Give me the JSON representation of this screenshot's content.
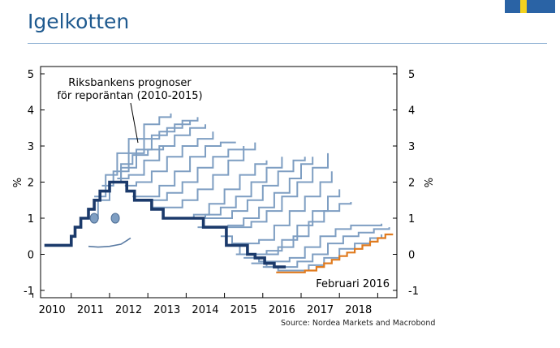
{
  "slide": {
    "title": "Igelkotten",
    "source": "Source: Nordea Markets and Macrobond"
  },
  "colors": {
    "title": "#1f5a8f",
    "forecast_line": "#7e9ec2",
    "actual_line": "#1b3a6b",
    "recent_line": "#e07b1f",
    "flag_blue": "#2a63a5",
    "flag_yellow": "#f3d21f"
  },
  "chart_data": {
    "type": "line",
    "step": true,
    "title": "",
    "xlabel": "",
    "ylabel_left": "%",
    "ylabel_right": "%",
    "xlim": [
      2009.7,
      2019.0
    ],
    "ylim": [
      -1,
      5
    ],
    "yticks": [
      "-1",
      "0",
      "1",
      "2",
      "3",
      "4",
      "5"
    ],
    "xticks": [
      "2010",
      "2011",
      "2012",
      "2013",
      "2014",
      "2015",
      "2016",
      "2017",
      "2018"
    ],
    "annotations": {
      "forecasts_label_line1": "Riksbankens prognoser",
      "forecasts_label_line2": "för reporäntan (2010-2015)",
      "latest_label": "Februari 2016"
    },
    "series": [
      {
        "role": "actual",
        "points": [
          [
            2009.8,
            0.25
          ],
          [
            2010.4,
            0.25
          ],
          [
            2010.5,
            0.5
          ],
          [
            2010.6,
            0.75
          ],
          [
            2010.75,
            1.0
          ],
          [
            2010.95,
            1.25
          ],
          [
            2011.1,
            1.5
          ],
          [
            2011.25,
            1.75
          ],
          [
            2011.5,
            2.0
          ],
          [
            2011.75,
            2.0
          ],
          [
            2011.95,
            1.75
          ],
          [
            2012.15,
            1.5
          ],
          [
            2012.6,
            1.25
          ],
          [
            2012.9,
            1.0
          ],
          [
            2013.5,
            1.0
          ],
          [
            2013.95,
            0.75
          ],
          [
            2014.5,
            0.75
          ],
          [
            2014.55,
            0.25
          ],
          [
            2014.85,
            0.25
          ],
          [
            2015.1,
            0.0
          ],
          [
            2015.3,
            -0.1
          ],
          [
            2015.55,
            -0.25
          ],
          [
            2015.8,
            -0.35
          ],
          [
            2016.1,
            -0.35
          ]
        ]
      },
      {
        "role": "recent",
        "points": [
          [
            2015.85,
            -0.5
          ],
          [
            2016.55,
            -0.5
          ],
          [
            2016.6,
            -0.45
          ],
          [
            2016.9,
            -0.35
          ],
          [
            2017.1,
            -0.25
          ],
          [
            2017.3,
            -0.15
          ],
          [
            2017.5,
            -0.05
          ],
          [
            2017.7,
            0.05
          ],
          [
            2017.9,
            0.15
          ],
          [
            2018.1,
            0.25
          ],
          [
            2018.3,
            0.35
          ],
          [
            2018.5,
            0.45
          ],
          [
            2018.7,
            0.55
          ],
          [
            2018.9,
            0.55
          ]
        ]
      },
      {
        "role": "forecast",
        "points": [
          [
            2010.9,
            1.0
          ],
          [
            2011.2,
            1.5
          ],
          [
            2011.5,
            2.0
          ],
          [
            2011.8,
            2.5
          ],
          [
            2012.1,
            2.75
          ],
          [
            2012.5,
            2.9
          ],
          [
            2012.9,
            3.0
          ]
        ]
      },
      {
        "role": "forecast",
        "points": [
          [
            2011.1,
            1.6
          ],
          [
            2011.4,
            2.2
          ],
          [
            2011.7,
            2.8
          ],
          [
            2012.0,
            3.2
          ],
          [
            2012.4,
            3.6
          ],
          [
            2012.8,
            3.8
          ],
          [
            2013.1,
            3.9
          ]
        ]
      },
      {
        "role": "forecast",
        "points": [
          [
            2011.3,
            1.9
          ],
          [
            2011.6,
            2.3
          ],
          [
            2012.0,
            2.8
          ],
          [
            2012.4,
            3.2
          ],
          [
            2012.8,
            3.4
          ],
          [
            2013.2,
            3.6
          ],
          [
            2013.6,
            3.7
          ]
        ]
      },
      {
        "role": "forecast",
        "points": [
          [
            2011.5,
            2.0
          ],
          [
            2011.8,
            2.4
          ],
          [
            2012.2,
            2.9
          ],
          [
            2012.6,
            3.3
          ],
          [
            2013.0,
            3.5
          ],
          [
            2013.4,
            3.7
          ],
          [
            2013.8,
            3.8
          ]
        ]
      },
      {
        "role": "forecast",
        "points": [
          [
            2011.7,
            2.1
          ],
          [
            2012.0,
            2.2
          ],
          [
            2012.4,
            2.6
          ],
          [
            2012.8,
            3.0
          ],
          [
            2013.2,
            3.3
          ],
          [
            2013.6,
            3.5
          ],
          [
            2014.0,
            3.6
          ]
        ]
      },
      {
        "role": "forecast",
        "points": [
          [
            2011.9,
            1.9
          ],
          [
            2012.2,
            2.0
          ],
          [
            2012.6,
            2.3
          ],
          [
            2013.0,
            2.7
          ],
          [
            2013.4,
            3.0
          ],
          [
            2013.8,
            3.2
          ],
          [
            2014.2,
            3.4
          ]
        ]
      },
      {
        "role": "forecast",
        "points": [
          [
            2012.1,
            1.6
          ],
          [
            2012.4,
            1.6
          ],
          [
            2012.8,
            1.9
          ],
          [
            2013.2,
            2.3
          ],
          [
            2013.6,
            2.7
          ],
          [
            2014.0,
            3.0
          ],
          [
            2014.4,
            3.1
          ],
          [
            2014.8,
            3.1
          ]
        ]
      },
      {
        "role": "forecast",
        "points": [
          [
            2012.3,
            1.5
          ],
          [
            2012.6,
            1.5
          ],
          [
            2013.0,
            1.7
          ],
          [
            2013.4,
            2.0
          ],
          [
            2013.8,
            2.4
          ],
          [
            2014.2,
            2.7
          ],
          [
            2014.6,
            2.9
          ],
          [
            2015.0,
            3.0
          ]
        ]
      },
      {
        "role": "forecast",
        "points": [
          [
            2012.6,
            1.3
          ],
          [
            2013.0,
            1.3
          ],
          [
            2013.4,
            1.5
          ],
          [
            2013.8,
            1.8
          ],
          [
            2014.2,
            2.2
          ],
          [
            2014.6,
            2.6
          ],
          [
            2015.0,
            2.9
          ],
          [
            2015.3,
            3.1
          ]
        ]
      },
      {
        "role": "forecast",
        "points": [
          [
            2012.9,
            1.0
          ],
          [
            2013.3,
            1.0
          ],
          [
            2013.7,
            1.1
          ],
          [
            2014.1,
            1.4
          ],
          [
            2014.5,
            1.8
          ],
          [
            2014.9,
            2.2
          ],
          [
            2015.3,
            2.5
          ],
          [
            2015.6,
            2.6
          ]
        ]
      },
      {
        "role": "forecast",
        "points": [
          [
            2013.2,
            1.0
          ],
          [
            2013.6,
            1.0
          ],
          [
            2014.0,
            1.1
          ],
          [
            2014.4,
            1.3
          ],
          [
            2014.8,
            1.6
          ],
          [
            2015.2,
            2.0
          ],
          [
            2015.6,
            2.4
          ],
          [
            2016.0,
            2.7
          ]
        ]
      },
      {
        "role": "forecast",
        "points": [
          [
            2013.5,
            1.0
          ],
          [
            2013.9,
            1.0
          ],
          [
            2014.3,
            1.0
          ],
          [
            2014.7,
            1.2
          ],
          [
            2015.1,
            1.5
          ],
          [
            2015.5,
            1.9
          ],
          [
            2015.9,
            2.3
          ],
          [
            2016.3,
            2.6
          ],
          [
            2016.6,
            2.7
          ]
        ]
      },
      {
        "role": "forecast",
        "points": [
          [
            2013.8,
            0.75
          ],
          [
            2014.2,
            0.75
          ],
          [
            2014.6,
            0.8
          ],
          [
            2015.0,
            1.0
          ],
          [
            2015.4,
            1.3
          ],
          [
            2015.8,
            1.7
          ],
          [
            2016.2,
            2.1
          ],
          [
            2016.5,
            2.5
          ],
          [
            2016.8,
            2.7
          ]
        ]
      },
      {
        "role": "forecast",
        "points": [
          [
            2014.1,
            0.75
          ],
          [
            2014.4,
            0.75
          ],
          [
            2014.8,
            0.75
          ],
          [
            2015.2,
            0.9
          ],
          [
            2015.6,
            1.2
          ],
          [
            2016.0,
            1.6
          ],
          [
            2016.4,
            2.0
          ],
          [
            2016.8,
            2.4
          ],
          [
            2017.2,
            2.8
          ]
        ]
      },
      {
        "role": "forecast",
        "points": [
          [
            2014.4,
            0.5
          ],
          [
            2014.7,
            0.3
          ],
          [
            2015.0,
            0.3
          ],
          [
            2015.4,
            0.4
          ],
          [
            2015.8,
            0.8
          ],
          [
            2016.2,
            1.2
          ],
          [
            2016.6,
            1.6
          ],
          [
            2017.0,
            2.0
          ],
          [
            2017.3,
            2.3
          ]
        ]
      },
      {
        "role": "forecast",
        "points": [
          [
            2014.6,
            0.25
          ],
          [
            2014.9,
            0.0
          ],
          [
            2015.2,
            0.0
          ],
          [
            2015.6,
            0.1
          ],
          [
            2016.0,
            0.4
          ],
          [
            2016.4,
            0.8
          ],
          [
            2016.8,
            1.2
          ],
          [
            2017.2,
            1.6
          ],
          [
            2017.5,
            1.8
          ]
        ]
      },
      {
        "role": "forecast",
        "points": [
          [
            2014.8,
            0.0
          ],
          [
            2015.1,
            0.0
          ],
          [
            2015.5,
            0.0
          ],
          [
            2015.9,
            0.2
          ],
          [
            2016.3,
            0.5
          ],
          [
            2016.7,
            0.9
          ],
          [
            2017.1,
            1.2
          ],
          [
            2017.5,
            1.4
          ],
          [
            2017.8,
            1.45
          ]
        ]
      },
      {
        "role": "forecast",
        "points": [
          [
            2015.0,
            -0.1
          ],
          [
            2015.4,
            -0.2
          ],
          [
            2015.8,
            -0.2
          ],
          [
            2016.2,
            -0.1
          ],
          [
            2016.6,
            0.2
          ],
          [
            2017.0,
            0.5
          ],
          [
            2017.4,
            0.7
          ],
          [
            2017.8,
            0.8
          ],
          [
            2018.2,
            0.8
          ],
          [
            2018.6,
            0.85
          ]
        ]
      },
      {
        "role": "forecast",
        "points": [
          [
            2015.2,
            -0.25
          ],
          [
            2015.6,
            -0.35
          ],
          [
            2016.0,
            -0.35
          ],
          [
            2016.4,
            -0.2
          ],
          [
            2016.8,
            0.0
          ],
          [
            2017.2,
            0.3
          ],
          [
            2017.6,
            0.5
          ],
          [
            2018.0,
            0.6
          ],
          [
            2018.4,
            0.7
          ],
          [
            2018.8,
            0.75
          ]
        ]
      },
      {
        "role": "forecast",
        "points": [
          [
            2015.5,
            -0.35
          ],
          [
            2015.9,
            -0.45
          ],
          [
            2016.3,
            -0.45
          ],
          [
            2016.7,
            -0.3
          ],
          [
            2017.1,
            -0.1
          ],
          [
            2017.5,
            0.15
          ],
          [
            2017.9,
            0.3
          ],
          [
            2018.3,
            0.45
          ],
          [
            2018.6,
            0.55
          ]
        ]
      }
    ],
    "decoration": {
      "eyes": [
        [
          2011.1,
          1.0
        ],
        [
          2011.65,
          1.0
        ]
      ],
      "mouth": [
        [
          2010.95,
          0.22
        ],
        [
          2011.2,
          0.2
        ],
        [
          2011.5,
          0.22
        ],
        [
          2011.8,
          0.28
        ],
        [
          2011.95,
          0.38
        ],
        [
          2012.05,
          0.45
        ]
      ]
    }
  }
}
